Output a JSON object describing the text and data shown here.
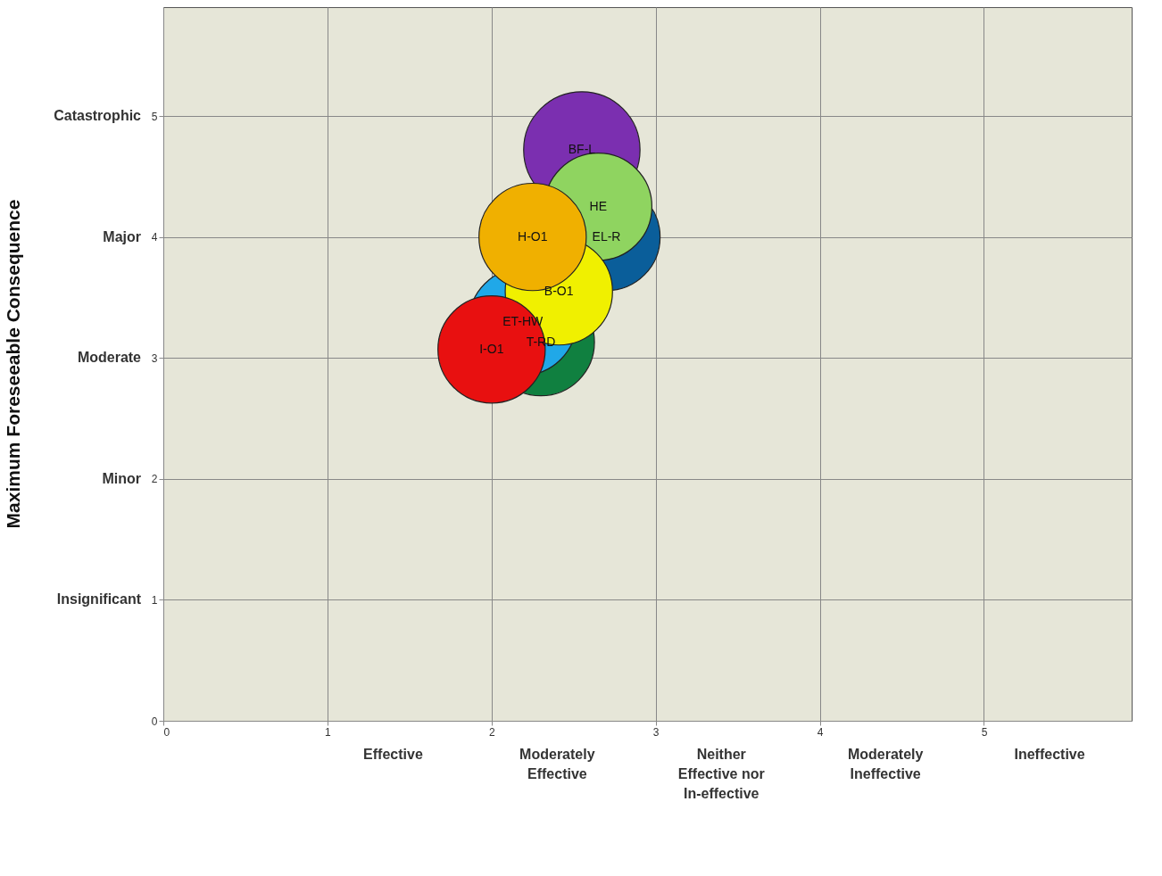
{
  "chart_data": {
    "type": "bubble",
    "xlim": [
      0,
      5.9
    ],
    "xticks": [
      0,
      1,
      2,
      3,
      4,
      5
    ],
    "ylim": [
      0,
      5.9
    ],
    "yticks": [
      0,
      1,
      2,
      3,
      4,
      5
    ],
    "annotations": [
      "Effective",
      "Moderately\nEffective",
      "Neither\nEffective nor\nIn-effective",
      "Moderately\nIneffective",
      "Ineffective",
      "Insignificant",
      "Minor",
      "Moderate",
      "Major",
      "Catastrophic",
      "Maximum Foreseeable Consequence"
    ],
    "grid": true,
    "legend": false,
    "series": [
      {
        "name": "BF-L",
        "color": "#7b2fb0",
        "x": [
          2.55
        ],
        "values": [
          4.72
        ],
        "sizes": [
          1
        ]
      },
      {
        "name": "EL-R",
        "color": "#0a5e9a",
        "x": [
          2.7
        ],
        "values": [
          4.0
        ],
        "sizes": [
          0.85
        ]
      },
      {
        "name": "HE",
        "color": "#8fd460",
        "x": [
          2.65
        ],
        "values": [
          4.25
        ],
        "sizes": [
          0.85
        ]
      },
      {
        "name": "T-RD",
        "color": "#108040",
        "x": [
          2.3
        ],
        "values": [
          3.13
        ],
        "sizes": [
          0.85
        ]
      },
      {
        "name": "ET-HW",
        "color": "#20a8e8",
        "x": [
          2.19
        ],
        "values": [
          3.3
        ],
        "sizes": [
          0.85
        ]
      },
      {
        "name": "B-O1",
        "color": "#f0f000",
        "x": [
          2.41
        ],
        "values": [
          3.55
        ],
        "sizes": [
          0.85
        ]
      },
      {
        "name": "H-O1",
        "color": "#f0b000",
        "x": [
          2.25
        ],
        "values": [
          4.0
        ],
        "sizes": [
          0.85
        ]
      },
      {
        "name": "I-O1",
        "color": "#e81010",
        "x": [
          2.0
        ],
        "values": [
          3.07
        ],
        "sizes": [
          0.85
        ]
      }
    ]
  }
}
